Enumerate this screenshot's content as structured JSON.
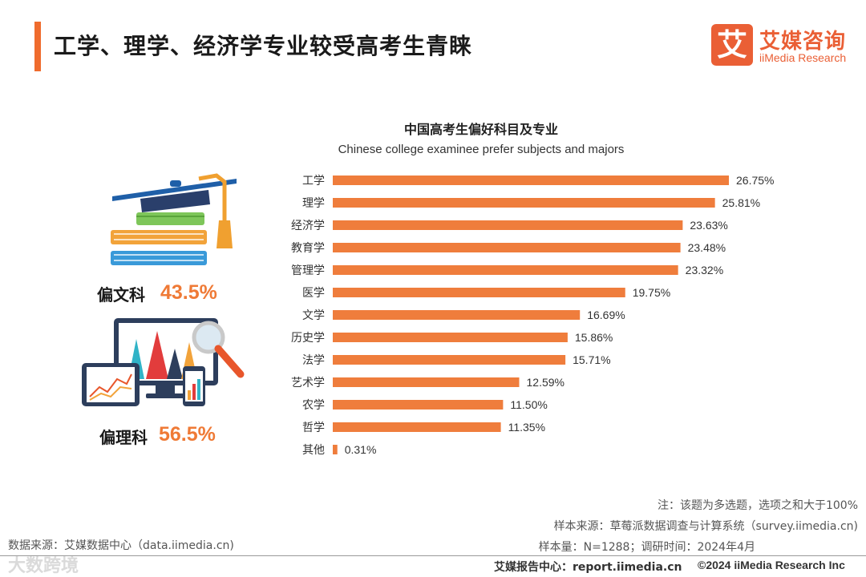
{
  "page": {
    "title": "工学、理学、经济学专业较受高考生青睐"
  },
  "logo": {
    "mark": "艾",
    "name_cn": "艾媒咨询",
    "name_en": "iiMedia Research"
  },
  "groups": [
    {
      "label": "偏文科",
      "value": "43.5%"
    },
    {
      "label": "偏理科",
      "value": "56.5%"
    }
  ],
  "colors": {
    "accent": "#ef6b2d",
    "bar": "#ef7d3c",
    "value_highlight": "#ef7a36"
  },
  "chart_data": {
    "type": "bar",
    "orientation": "horizontal",
    "title": "中国高考生偏好科目及专业",
    "subtitle": "Chinese college examinee prefer subjects and majors",
    "categories": [
      "工学",
      "理学",
      "经济学",
      "教育学",
      "管理学",
      "医学",
      "文学",
      "历史学",
      "法学",
      "艺术学",
      "农学",
      "哲学",
      "其他"
    ],
    "values": [
      26.75,
      25.81,
      23.63,
      23.48,
      23.32,
      19.75,
      16.69,
      15.86,
      15.71,
      12.59,
      11.5,
      11.35,
      0.31
    ],
    "value_labels": [
      "26.75%",
      "25.81%",
      "23.63%",
      "23.48%",
      "23.32%",
      "19.75%",
      "16.69%",
      "15.86%",
      "15.71%",
      "12.59%",
      "11.50%",
      "11.35%",
      "0.31%"
    ],
    "xlim": [
      0,
      26.75
    ],
    "grid": false,
    "legend": "none"
  },
  "notes": {
    "note": "注：该题为多选题，选项之和大于100%",
    "sample_source": "样本来源：草莓派数据调查与计算系统（survey.iimedia.cn)",
    "sample_size": "样本量：N=1288；调研时间：2024年4月"
  },
  "footer": {
    "data_source": "数据来源：艾媒数据中心（data.iimedia.cn)",
    "brand": "艾媒报告中心：report.iimedia.cn",
    "copyright": "©2024  iiMedia Research  Inc",
    "watermark": "大数跨境"
  }
}
